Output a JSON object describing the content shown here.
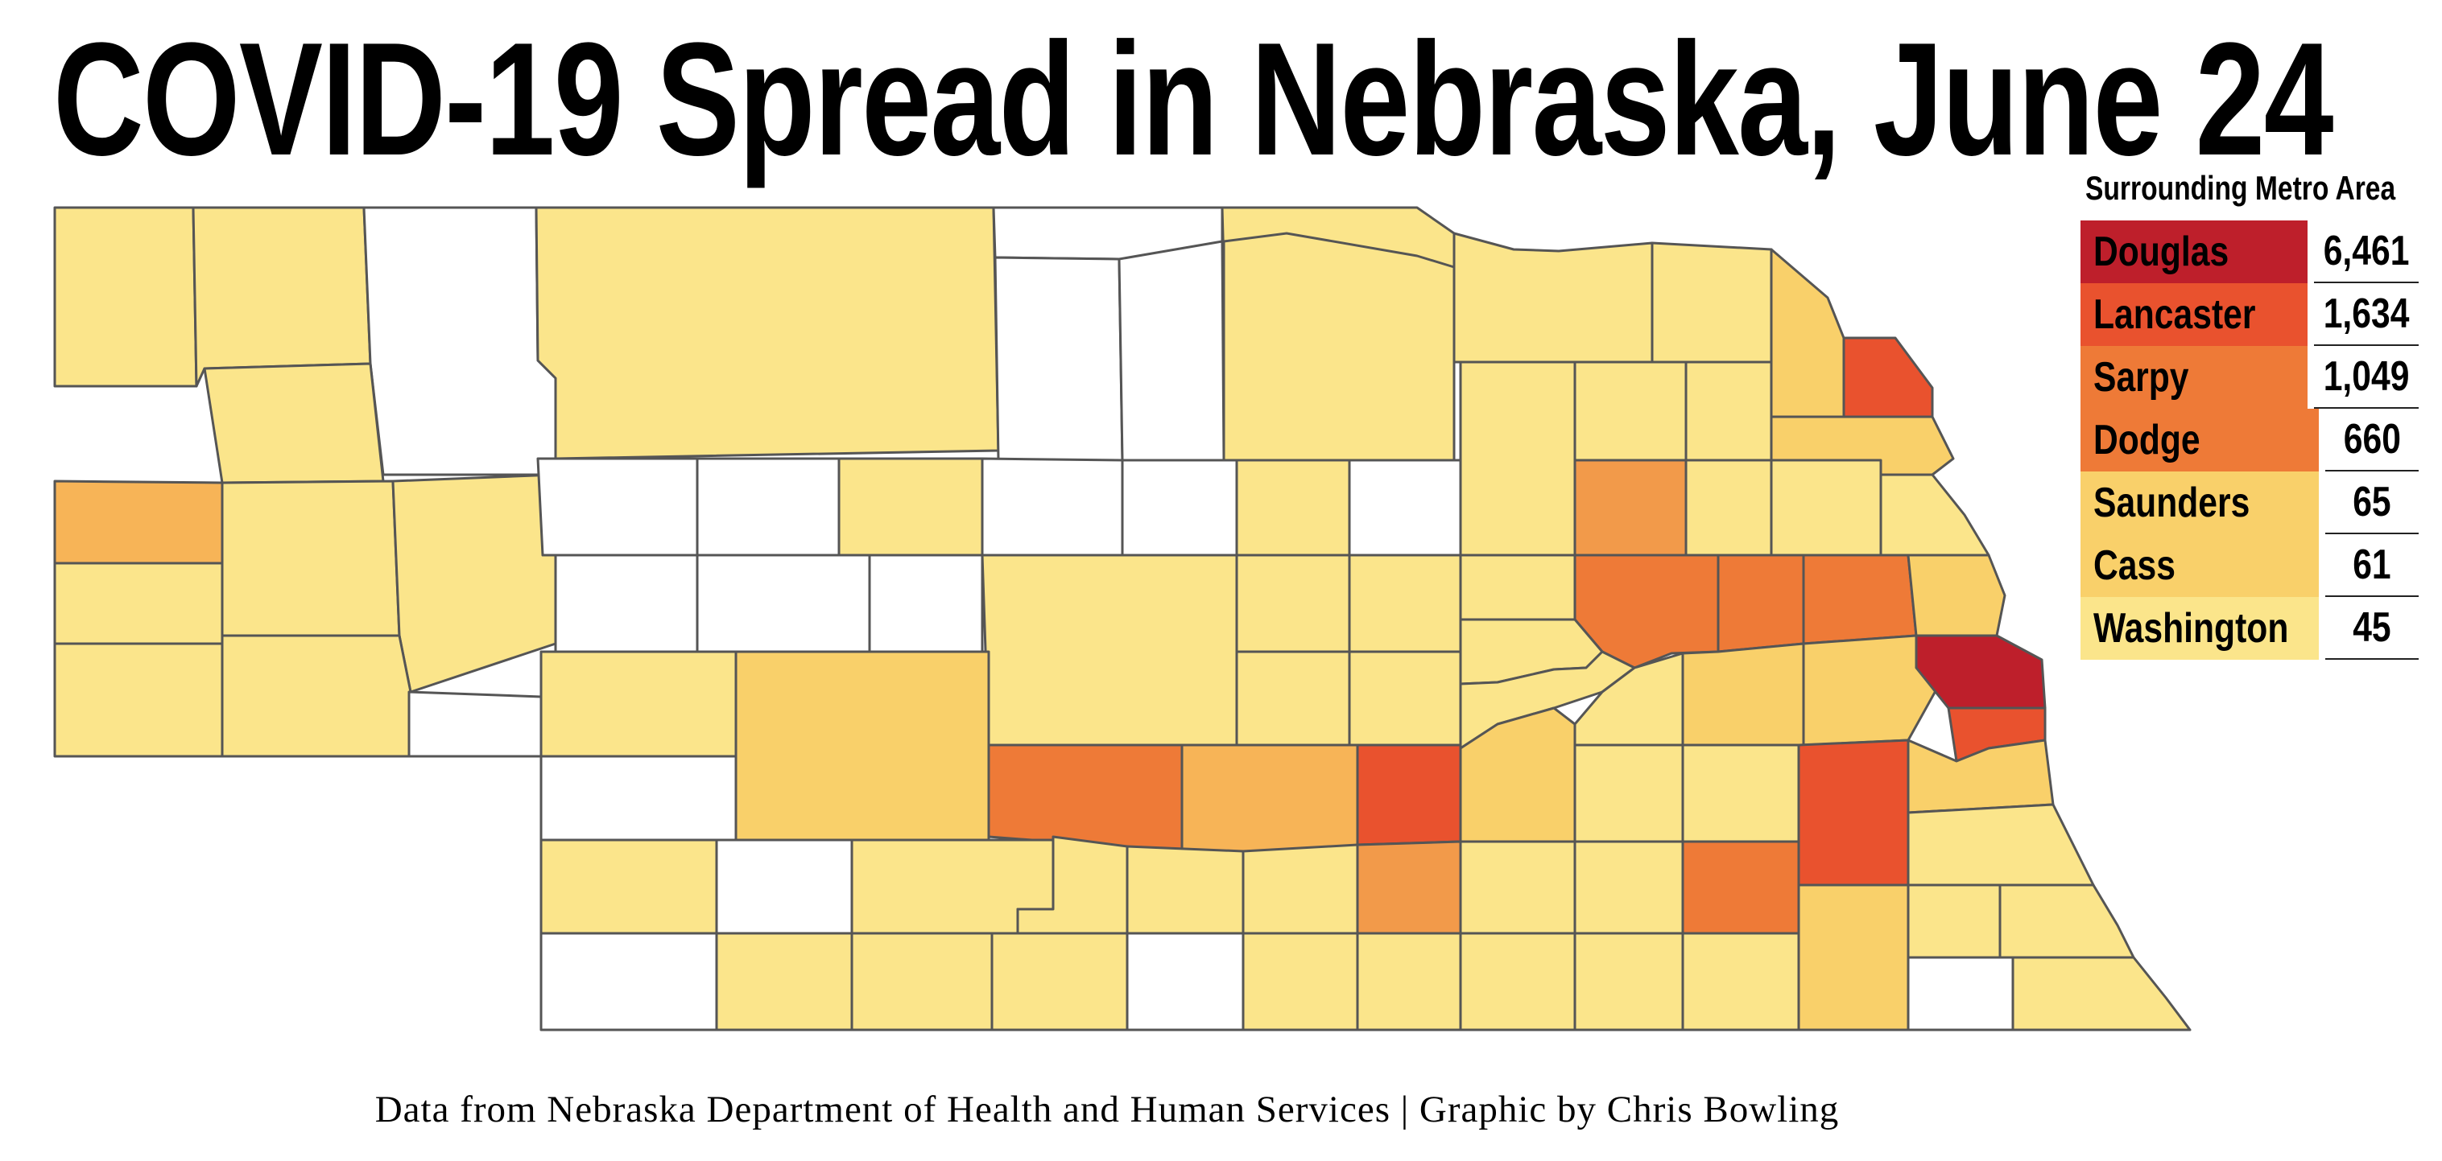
{
  "title": "COVID-19 Spread in Nebraska, June 24",
  "credit": "Data from Nebraska Department of Health and Human Services | Graphic by Chris Bowling",
  "colors": {
    "none": "#ffffff",
    "c1": "#fbe58b",
    "c2": "#f9d06a",
    "c3": "#f7b457",
    "c4": "#f29a4a",
    "c5": "#ee7a37",
    "c6": "#e9522e",
    "c7": "#be1f2b",
    "border": "#555555"
  },
  "legend": {
    "title": "Surrounding Metro Area",
    "rows": [
      {
        "name": "Douglas",
        "value": "6,461",
        "color": "#be1f2b"
      },
      {
        "name": "Lancaster",
        "value": "1,634",
        "color": "#e9522e"
      },
      {
        "name": "Sarpy",
        "value": "1,049",
        "color": "#ee7a37"
      },
      {
        "name": "Dodge",
        "value": "660",
        "color": "#ee7a37"
      },
      {
        "name": "Saunders",
        "value": "65",
        "color": "#f9d06a"
      },
      {
        "name": "Cass",
        "value": "61",
        "color": "#f9d06a"
      },
      {
        "name": "Washington",
        "value": "45",
        "color": "#fbe58b"
      }
    ]
  }
}
